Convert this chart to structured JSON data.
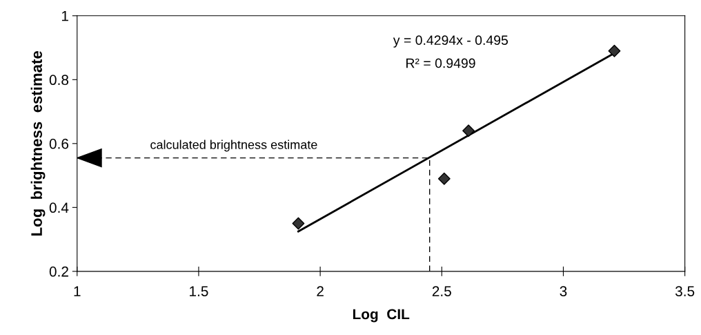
{
  "chart_data": {
    "type": "scatter",
    "xlabel": "Log  CIL",
    "ylabel": "Log  brightness  estimate",
    "series": [
      {
        "color": "#333333",
        "marker": "diamond",
        "x": [
          1.91,
          2.51,
          2.61,
          3.21
        ],
        "values": [
          0.35,
          0.49,
          0.64,
          0.89
        ]
      },
      {
        "type": "line",
        "color": "#000000",
        "marker": "none",
        "line_style": "solid",
        "x": [
          1.91,
          3.21
        ],
        "values": [
          0.325,
          0.883
        ]
      }
    ],
    "annotations": [
      "y = 0.4294x - 0.495",
      "R² = 0.9499"
    ],
    "ref_lines": [
      {
        "axis": "y",
        "value": 0.555,
        "label": "calculated brightness estimate",
        "line_style": "dashed",
        "color": "#000000"
      },
      {
        "axis": "x",
        "value": 2.45,
        "label": null,
        "line_style": "dashed",
        "color": "#000000"
      }
    ],
    "xlim": [
      1,
      3.5
    ],
    "ylim": [
      0.2,
      1
    ],
    "xticks": [
      1,
      1.5,
      2,
      2.5,
      3,
      3.5
    ],
    "yticks": [
      0.2,
      0.4,
      0.6,
      0.8,
      1
    ],
    "grid": false,
    "legend": false
  }
}
